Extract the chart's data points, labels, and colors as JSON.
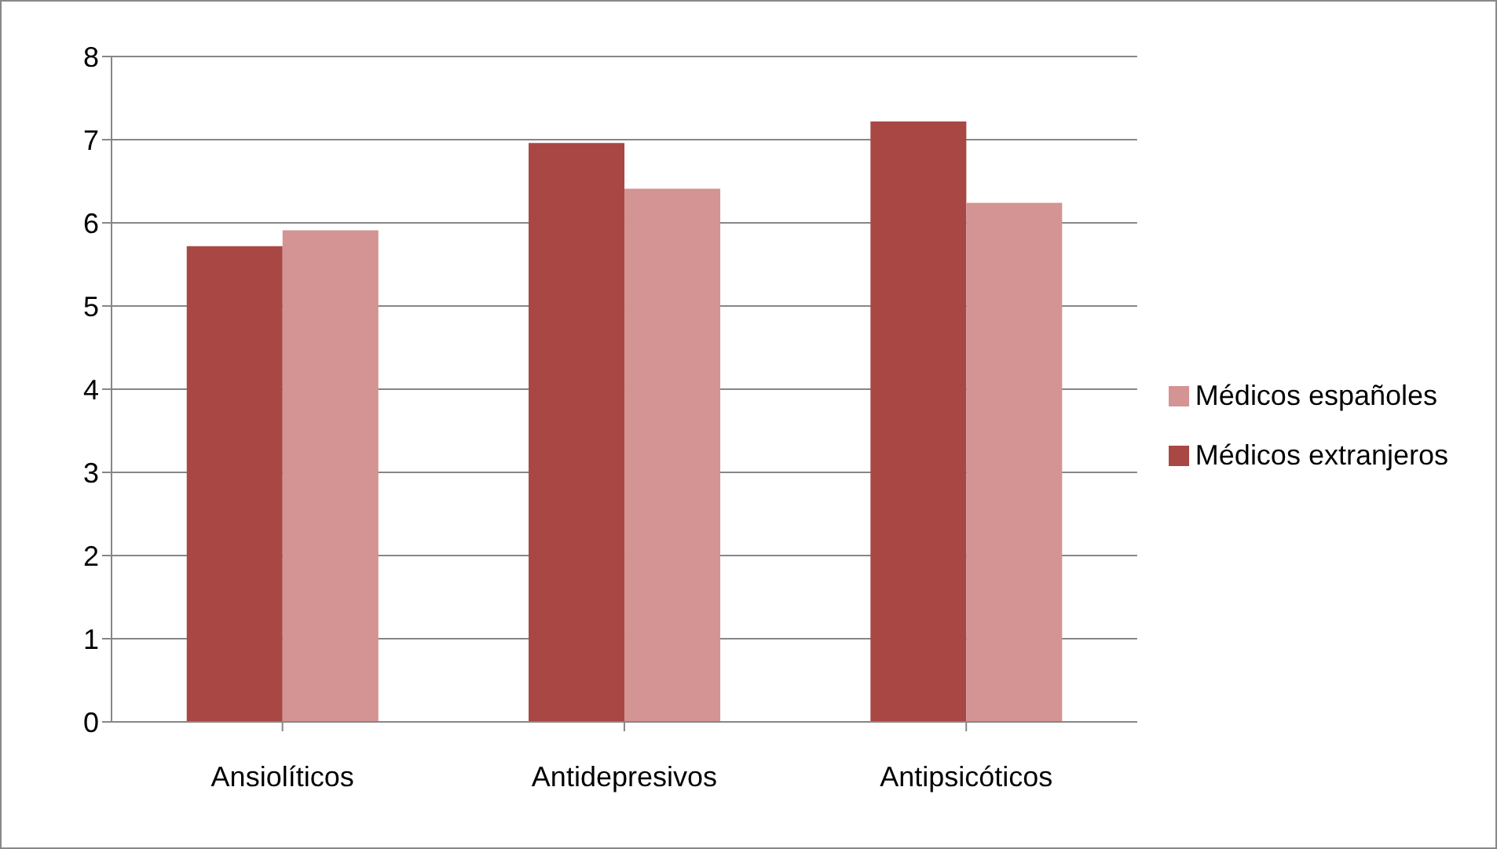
{
  "chart_data": {
    "type": "bar",
    "categories": [
      "Ansiolíticos",
      "Antidepresivos",
      "Antipsicóticos"
    ],
    "series": [
      {
        "name": "Médicos extranjeros",
        "color": "#a94744",
        "values": [
          5.72,
          6.96,
          7.22
        ]
      },
      {
        "name": "Médicos españoles",
        "color": "#d39493",
        "values": [
          5.91,
          6.41,
          6.24
        ]
      }
    ],
    "ylim": [
      0,
      8
    ],
    "yticks": [
      0,
      1,
      2,
      3,
      4,
      5,
      6,
      7,
      8
    ],
    "grid": "y",
    "legend": "right"
  }
}
